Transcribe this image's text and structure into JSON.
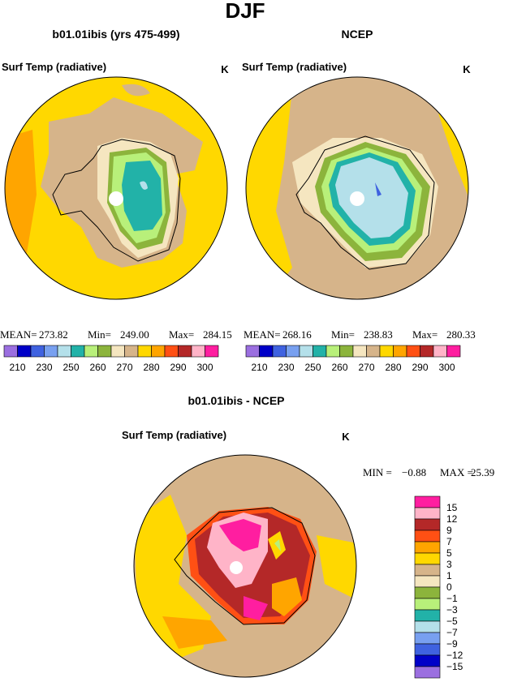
{
  "title": "DJF",
  "panels": [
    {
      "title": "b01.01ibis (yrs 475-499)",
      "subtitle": "Surf Temp (radiative)",
      "units": "K",
      "stats": [
        "MEAN=",
        "273.82",
        "Min=",
        "249.00",
        "Max=",
        "284.15"
      ]
    },
    {
      "title": "NCEP",
      "subtitle": "Surf Temp (radiative)",
      "units": "K",
      "stats": [
        "MEAN=",
        "268.16",
        "Min=",
        "238.83",
        "Max=",
        "280.33"
      ]
    },
    {
      "title": "b01.01ibis - NCEP",
      "subtitle": "Surf Temp (radiative)",
      "units": "K",
      "stats": [
        "MIN =",
        "−0.88",
        "MAX =",
        "25.39"
      ]
    }
  ],
  "colorbar": {
    "colors": [
      "#9b6fe0",
      "#0000c8",
      "#3f62e0",
      "#78a0f0",
      "#b4e0ea",
      "#22b2a8",
      "#b8f07a",
      "#8cb43c",
      "#f5e6c0",
      "#d6b48a",
      "#ffd800",
      "#ffa500",
      "#ff5014",
      "#b42828",
      "#ffb4c8",
      "#ff1ea0"
    ],
    "labels": [
      "210",
      "230",
      "250",
      "260",
      "270",
      "280",
      "290",
      "300"
    ]
  },
  "diff_colorbar": {
    "colors": [
      "#ff1ea0",
      "#ffb4c8",
      "#b42828",
      "#ff5014",
      "#ffa500",
      "#ffd800",
      "#d6b48a",
      "#f5e6c0",
      "#8cb43c",
      "#b8f07a",
      "#22b2a8",
      "#b4e0ea",
      "#78a0f0",
      "#3f62e0",
      "#0000c8",
      "#9b6fe0"
    ],
    "labels": [
      "15",
      "12",
      "9",
      "7",
      "5",
      "3",
      "1",
      "0",
      "−1",
      "−3",
      "−5",
      "−7",
      "−9",
      "−12",
      "−15"
    ]
  }
}
